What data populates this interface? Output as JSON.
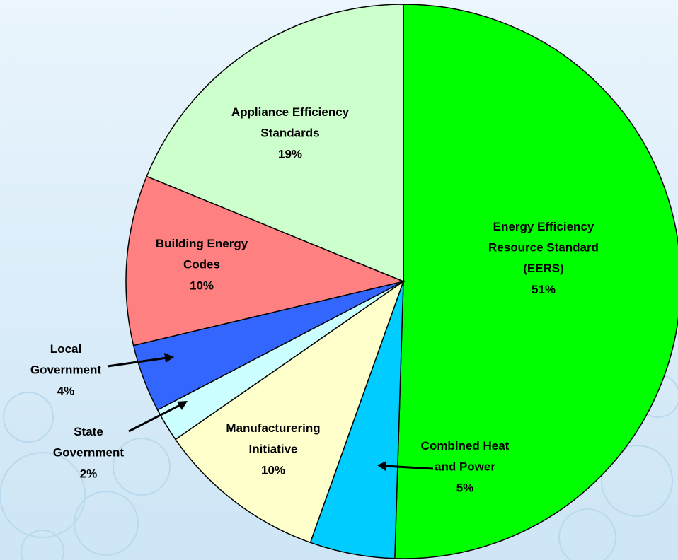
{
  "chart_data": {
    "type": "pie",
    "categories": [
      "Energy Efficiency Resource Standard (EERS)",
      "Combined Heat and Power",
      "Manufacturering Initiative",
      "State Government",
      "Local Government",
      "Building Energy Codes",
      "Appliance Efficiency Standards"
    ],
    "values": [
      51,
      5,
      10,
      2,
      4,
      10,
      19
    ],
    "value_labels": [
      "51%",
      "5%",
      "10%",
      "2%",
      "4%",
      "10%",
      "19%"
    ],
    "colors": [
      "#00ff00",
      "#00ccff",
      "#ffffcc",
      "#ccffff",
      "#3366ff",
      "#ff8080",
      "#ccffcc"
    ]
  }
}
